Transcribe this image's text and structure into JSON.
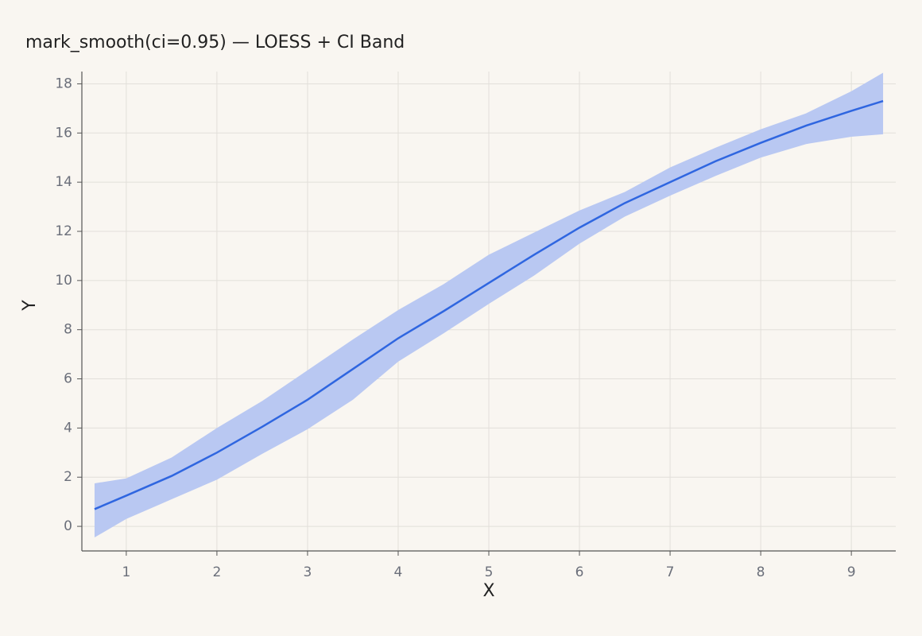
{
  "chart_data": {
    "type": "line",
    "title": "mark_smooth(ci=0.95) — LOESS + CI Band",
    "xlabel": "X",
    "ylabel": "Y",
    "x": [
      0.65,
      1.0,
      1.5,
      2.0,
      2.5,
      3.0,
      3.5,
      4.0,
      4.5,
      5.0,
      5.5,
      6.0,
      6.5,
      7.0,
      7.5,
      8.0,
      8.5,
      9.0,
      9.35
    ],
    "series": [
      {
        "color": "#2f66e0",
        "band_color": "#b9c8f2",
        "values": [
          0.7,
          1.25,
          2.05,
          3.0,
          4.05,
          5.15,
          6.4,
          7.65,
          8.75,
          9.9,
          11.05,
          12.15,
          13.15,
          14.0,
          14.85,
          15.6,
          16.3,
          16.9,
          17.3
        ],
        "lower": [
          -0.45,
          0.3,
          1.1,
          1.9,
          2.95,
          3.95,
          5.15,
          6.7,
          7.85,
          9.05,
          10.2,
          11.5,
          12.6,
          13.45,
          14.25,
          15.0,
          15.55,
          15.85,
          15.95
        ],
        "upper": [
          1.75,
          1.95,
          2.8,
          4.0,
          5.1,
          6.35,
          7.6,
          8.8,
          9.85,
          11.05,
          11.95,
          12.85,
          13.6,
          14.6,
          15.4,
          16.15,
          16.8,
          17.7,
          18.45
        ]
      }
    ],
    "xlim": [
      0.51,
      9.49
    ],
    "xticks": [
      1,
      2,
      3,
      4,
      5,
      6,
      7,
      8,
      9
    ],
    "ylim": [
      -1.0,
      18.5
    ],
    "yticks": [
      0,
      2,
      4,
      6,
      8,
      10,
      12,
      14,
      16,
      18
    ],
    "grid": true
  }
}
